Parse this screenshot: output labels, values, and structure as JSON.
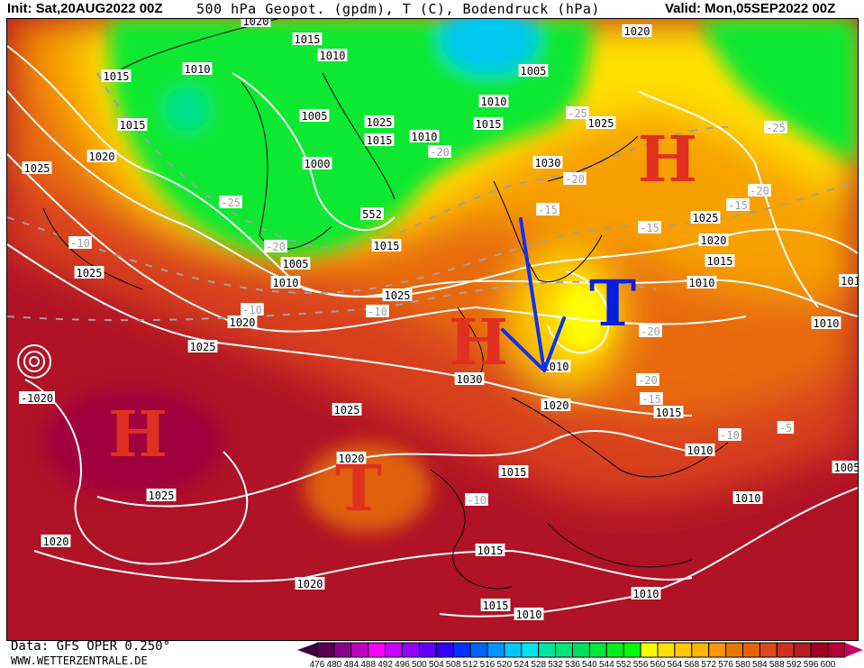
{
  "header": {
    "init": "Init: Sat,20AUG2022 00Z",
    "title": "500 hPa Geopot. (gpdm), T (C), Bodendruck (hPa)",
    "valid": "Valid: Mon,05SEP2022 00Z"
  },
  "footer": {
    "data_source": "Data: GFS OPER 0.250°",
    "site": "WWW.WETTERZENTRALE.DE"
  },
  "legend": {
    "labels": [
      "476",
      "480",
      "484",
      "488",
      "492",
      "496",
      "500",
      "504",
      "508",
      "512",
      "516",
      "520",
      "524",
      "528",
      "532",
      "536",
      "540",
      "544",
      "552",
      "556",
      "560",
      "564",
      "568",
      "572",
      "576",
      "580",
      "584",
      "588",
      "592",
      "596",
      "600"
    ],
    "colors": [
      "#5a0050",
      "#8c008c",
      "#c000c0",
      "#ff00ff",
      "#c800ff",
      "#9600ff",
      "#6400ff",
      "#3200ff",
      "#0032ff",
      "#0064ff",
      "#0096ff",
      "#00c8ff",
      "#00e6f0",
      "#00e6a0",
      "#00e678",
      "#00e060",
      "#00e640",
      "#00f020",
      "#00ff00",
      "#ffff00",
      "#ffe100",
      "#ffc800",
      "#ffb400",
      "#ff9600",
      "#e67800",
      "#e66400",
      "#e04820",
      "#d03020",
      "#b41e1e",
      "#a00020",
      "#b40032"
    ],
    "low_arrow_color": "#3c0040",
    "high_arrow_color": "#c80064"
  },
  "map": {
    "colors": {
      "isobar": "#ffffff",
      "isotherm": "#a0a0a0",
      "coast": "#000000",
      "high_symbol": "#e03020",
      "low_symbol_red": "#e03020",
      "low_symbol_blue": "#0020e0",
      "arrow": "#1030f0"
    },
    "symbols": [
      "H",
      "H",
      "T",
      "T",
      "H"
    ],
    "labels": [
      "1020",
      "1015",
      "1010",
      "1010",
      "1015",
      "1015",
      "1020",
      "1025",
      "1005",
      "1025",
      "1015",
      "1000",
      "-25",
      "552",
      "1015",
      "-20",
      "1005",
      "1010",
      "-10",
      "1025",
      "1025",
      "-10",
      "-10",
      "1020",
      "1010",
      "-20",
      "1015",
      "1010",
      "1005",
      "1020",
      "-25",
      "1025",
      "1030",
      "-20",
      "-15",
      "-15",
      "1025",
      "1020",
      "1015",
      "1010",
      "-20",
      "-15",
      "-25",
      "1010",
      "101",
      "1025",
      "1030",
      "1010",
      "-20",
      "-20",
      "-15",
      "1015",
      "1020",
      "1025",
      "1010",
      "-10",
      "-5",
      "1005",
      "1020",
      "1015",
      "-10",
      "1025",
      "1010",
      "1020",
      "1015",
      "1020",
      "1010",
      "1015",
      "1010",
      "-1020"
    ]
  }
}
